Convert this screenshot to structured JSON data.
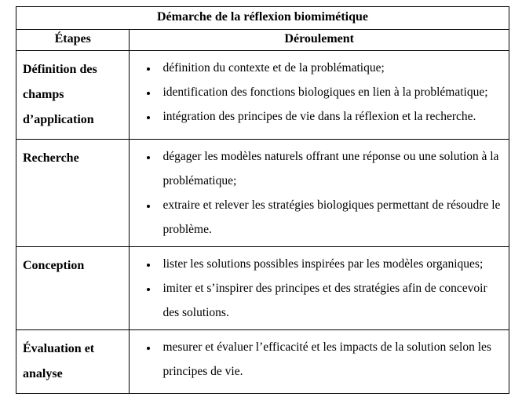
{
  "table": {
    "title": "Démarche de la réflexion biomimétique",
    "headers": {
      "steps": "Étapes",
      "flow": "Déroulement"
    },
    "rows": [
      {
        "step": "Définition des champs d’application",
        "items": [
          "définition du contexte et de la problématique;",
          "identification des fonctions biologiques en lien à la problématique;",
          "intégration des principes de vie dans la réflexion et la recherche."
        ]
      },
      {
        "step": "Recherche",
        "items": [
          "dégager les modèles naturels offrant une réponse ou une solution à la problématique;",
          "extraire et relever les stratégies biologiques permettant de résoudre le problème."
        ]
      },
      {
        "step": "Conception",
        "items": [
          "lister les solutions possibles inspirées par les modèles organiques;",
          "imiter et s’inspirer des principes et des stratégies afin de concevoir des solutions."
        ]
      },
      {
        "step": "Évaluation et analyse",
        "items": [
          "mesurer et évaluer l’efficacité et les impacts de la solution selon les principes de vie."
        ]
      }
    ],
    "style": {
      "border_color": "#000000",
      "background_color": "#ffffff",
      "font_family": "Times New Roman",
      "title_fontsize_pt": 12,
      "header_fontsize_pt": 12,
      "body_fontsize_pt": 12,
      "line_height": 2.0,
      "col_widths_pct": [
        23,
        77
      ],
      "bullet_style": "disc"
    }
  }
}
